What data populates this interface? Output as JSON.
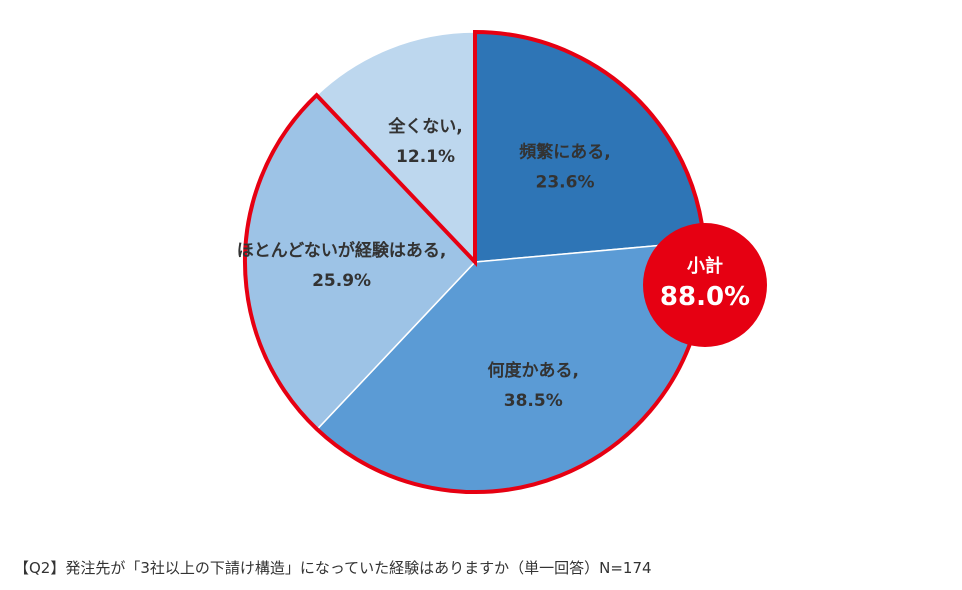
{
  "chart_data": {
    "type": "pie",
    "slices": [
      {
        "label": "頻繁にある,",
        "value": 23.6,
        "value_label": "23.6%",
        "color": "#2E75B6",
        "highlighted": true
      },
      {
        "label": "何度かある,",
        "value": 38.5,
        "value_label": "38.5%",
        "color": "#5B9BD5",
        "highlighted": true
      },
      {
        "label": "ほとんどないが経験はある,",
        "value": 25.9,
        "value_label": "25.9%",
        "color": "#9DC3E6",
        "highlighted": true
      },
      {
        "label": "全くない,",
        "value": 12.1,
        "value_label": "12.1%",
        "color": "#BDD7EE",
        "highlighted": false
      }
    ],
    "start": "12 o'clock",
    "direction": "clockwise",
    "highlight_color": "#E60012",
    "subtotal": {
      "title": "小計",
      "value": "88.0%",
      "color": "#E60012"
    }
  },
  "caption": "【Q2】発注先が「3社以上の下請け構造」になっていた経験はありますか（単一回答）N=174"
}
